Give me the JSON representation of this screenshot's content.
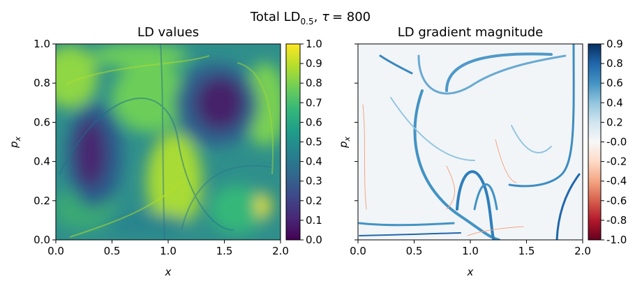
{
  "chart_data": [
    {
      "type": "heatmap",
      "figure_title": {
        "prefix": "Total LD",
        "subscript": "0.5",
        "suffix": ", ",
        "tau_symbol": "τ",
        "tau_value": "= 800"
      },
      "title": "LD values",
      "xlabel": "x",
      "ylabel": {
        "base": "p",
        "sub": "x"
      },
      "xlim": [
        0.0,
        2.0
      ],
      "ylim": [
        0.0,
        1.0
      ],
      "xticks": [
        "0.0",
        "0.5",
        "1.0",
        "1.5",
        "2.0"
      ],
      "yticks": [
        "0.0",
        "0.2",
        "0.4",
        "0.6",
        "0.8",
        "1.0"
      ],
      "colormap": "viridis",
      "colorbar": {
        "range": [
          0.0,
          1.0
        ],
        "ticks": [
          "0.0",
          "0.1",
          "0.2",
          "0.3",
          "0.4",
          "0.5",
          "0.6",
          "0.7",
          "0.8",
          "0.9",
          "1.0"
        ]
      },
      "features": [
        {
          "desc": "low-value vortex core",
          "x": 0.35,
          "y": 0.45,
          "value": 0.05
        },
        {
          "desc": "low-value vortex core",
          "x": 1.45,
          "y": 0.7,
          "value": 0.05
        },
        {
          "desc": "high-value streak",
          "x": 1.8,
          "y": 0.18,
          "value": 1.0
        }
      ]
    },
    {
      "type": "heatmap",
      "title": "LD gradient magnitude",
      "xlabel": "x",
      "ylabel": {
        "base": "p",
        "sub": "x"
      },
      "xlim": [
        0.0,
        2.0
      ],
      "ylim": [
        0.0,
        1.0
      ],
      "xticks": [
        "0.0",
        "0.5",
        "1.0",
        "1.5",
        "2.0"
      ],
      "yticks": [
        "",
        "",
        "",
        "",
        "",
        ""
      ],
      "colormap": "RdBu",
      "colorbar": {
        "range": [
          -1.0,
          0.95
        ],
        "ticks": [
          "-1.0",
          "-0.8",
          "-0.6",
          "-0.4",
          "-0.2",
          "-0.0",
          "0.2",
          "0.4",
          "0.6",
          "0.8",
          "0.9"
        ]
      }
    }
  ],
  "colors": {
    "viridis": [
      "#440154",
      "#482878",
      "#3e4989",
      "#31688e",
      "#26828e",
      "#1f9e89",
      "#35b779",
      "#6ece58",
      "#b5de2b",
      "#fde725"
    ],
    "rdbu": [
      "#67001f",
      "#b2182b",
      "#d6604d",
      "#f4a582",
      "#fddbc7",
      "#f7f7f7",
      "#d1e5f0",
      "#92c5de",
      "#4393c3",
      "#2166ac",
      "#053061"
    ]
  }
}
